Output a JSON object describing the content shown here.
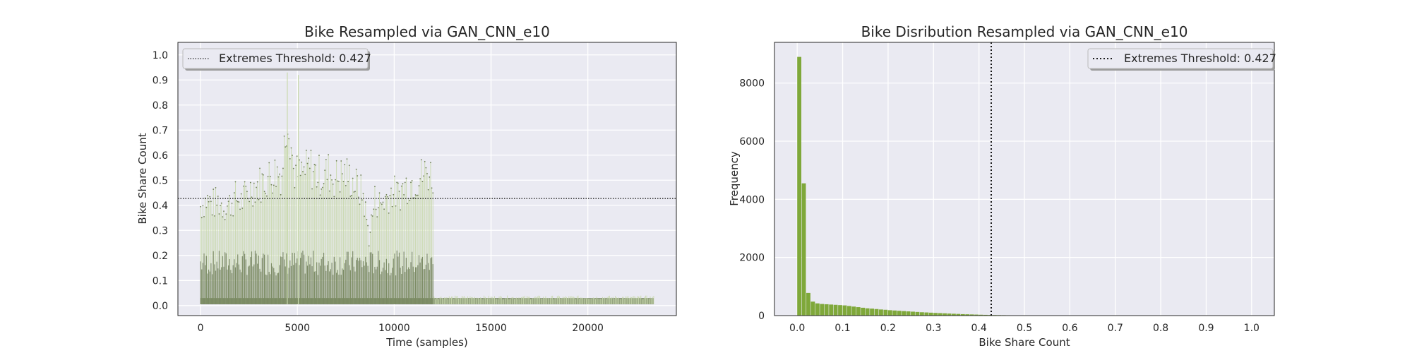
{
  "chart_data": [
    {
      "type": "line",
      "title": "Bike Resampled via GAN_CNN_e10",
      "xlabel": "Time (samples)",
      "ylabel": "Bike Share Count",
      "xlim": [
        -1170,
        24570
      ],
      "ylim": [
        -0.04,
        1.05
      ],
      "xticks": [
        0,
        5000,
        10000,
        15000,
        20000
      ],
      "xtick_labels": [
        "0",
        "5000",
        "10000",
        "15000",
        "20000"
      ],
      "yticks": [
        0.0,
        0.1,
        0.2,
        0.3,
        0.4,
        0.5,
        0.6,
        0.7,
        0.8,
        0.9,
        1.0
      ],
      "ytick_labels": [
        "0.0",
        "0.1",
        "0.2",
        "0.3",
        "0.4",
        "0.5",
        "0.6",
        "0.7",
        "0.8",
        "0.9",
        "1.0"
      ],
      "grid": true,
      "legend_position": "upper-left",
      "series": [
        {
          "name": "",
          "line_color": "#c9d9ae",
          "marker_color": "#6f7f57",
          "x": [
            0,
            300,
            600,
            900,
            1200,
            1500,
            1800,
            2100,
            2400,
            2700,
            3000,
            3300,
            3600,
            3900,
            4200,
            4500,
            4800,
            5100,
            5400,
            5700,
            6000,
            6300,
            6600,
            6900,
            7200,
            7500,
            7800,
            8100,
            8400,
            8700,
            9000,
            9300,
            9600,
            9900,
            10200,
            10500,
            10800,
            11100,
            11400,
            11700,
            12000,
            12300,
            13000,
            14000,
            15000,
            16000,
            17000,
            18000,
            19000,
            20000,
            21000,
            22000,
            23000,
            23400
          ],
          "y": [
            0.46,
            0.49,
            0.47,
            0.48,
            0.46,
            0.47,
            0.5,
            0.48,
            0.52,
            0.55,
            0.56,
            0.58,
            0.6,
            0.62,
            0.61,
            0.92,
            0.63,
            0.6,
            0.62,
            0.64,
            0.61,
            0.6,
            0.62,
            0.59,
            0.6,
            0.61,
            0.58,
            0.55,
            0.51,
            0.32,
            0.49,
            0.47,
            0.5,
            0.53,
            0.51,
            0.55,
            0.57,
            0.58,
            0.6,
            0.62,
            0.6,
            0.03,
            0.03,
            0.03,
            0.04,
            0.03,
            0.03,
            0.04,
            0.03,
            0.03,
            0.03,
            0.03,
            0.03,
            0.03
          ]
        },
        {
          "name": "Extremes Threshold: 0.427",
          "type": "hline",
          "value": 0.427,
          "line_style": "dotted",
          "color": "#262626"
        }
      ]
    },
    {
      "type": "bar",
      "title": "Bike Disribution Resampled via GAN_CNN_e10",
      "xlabel": "Bike Share Count",
      "ylabel": "Frequency",
      "xlim": [
        -0.05,
        1.05
      ],
      "ylim": [
        0,
        9400
      ],
      "xticks": [
        0.0,
        0.1,
        0.2,
        0.3,
        0.4,
        0.5,
        0.6,
        0.7,
        0.8,
        0.9,
        1.0
      ],
      "xtick_labels": [
        "0.0",
        "0.1",
        "0.2",
        "0.3",
        "0.4",
        "0.5",
        "0.6",
        "0.7",
        "0.8",
        "0.9",
        "1.0"
      ],
      "yticks": [
        0,
        2000,
        4000,
        6000,
        8000
      ],
      "ytick_labels": [
        "0",
        "2000",
        "4000",
        "6000",
        "8000"
      ],
      "grid": true,
      "legend_position": "upper-right",
      "bar_color": "#7fa83a",
      "bin_width": 0.01,
      "bin_starts": [
        0.0,
        0.01,
        0.02,
        0.03,
        0.04,
        0.05,
        0.06,
        0.07,
        0.08,
        0.09,
        0.1,
        0.11,
        0.12,
        0.13,
        0.14,
        0.15,
        0.16,
        0.17,
        0.18,
        0.19,
        0.2,
        0.21,
        0.22,
        0.23,
        0.24,
        0.25,
        0.26,
        0.27,
        0.28,
        0.29,
        0.3,
        0.31,
        0.32,
        0.33,
        0.34,
        0.35,
        0.36,
        0.37,
        0.38,
        0.39,
        0.4,
        0.41,
        0.42,
        0.43,
        0.44,
        0.45,
        0.46,
        0.47,
        0.48,
        0.49,
        0.5,
        0.51,
        0.52,
        0.53,
        0.54,
        0.55,
        0.56,
        0.57,
        0.58,
        0.59,
        0.6,
        0.62,
        0.64,
        0.66,
        0.68,
        0.7,
        0.75,
        0.8,
        0.85,
        0.9
      ],
      "values": [
        8900,
        4550,
        780,
        480,
        420,
        400,
        390,
        380,
        370,
        360,
        350,
        330,
        310,
        290,
        270,
        250,
        240,
        225,
        210,
        200,
        185,
        175,
        165,
        155,
        145,
        135,
        125,
        115,
        108,
        100,
        92,
        85,
        78,
        70,
        63,
        57,
        50,
        45,
        40,
        35,
        30,
        26,
        22,
        19,
        17,
        15,
        13,
        11,
        10,
        9,
        8,
        7,
        6,
        5,
        5,
        4,
        4,
        3,
        3,
        3,
        2,
        2,
        2,
        2,
        1,
        1,
        1,
        1,
        1,
        1
      ],
      "threshold": {
        "name": "Extremes Threshold: 0.427",
        "value": 0.427,
        "line_style": "dotted",
        "color": "#000000"
      }
    }
  ]
}
